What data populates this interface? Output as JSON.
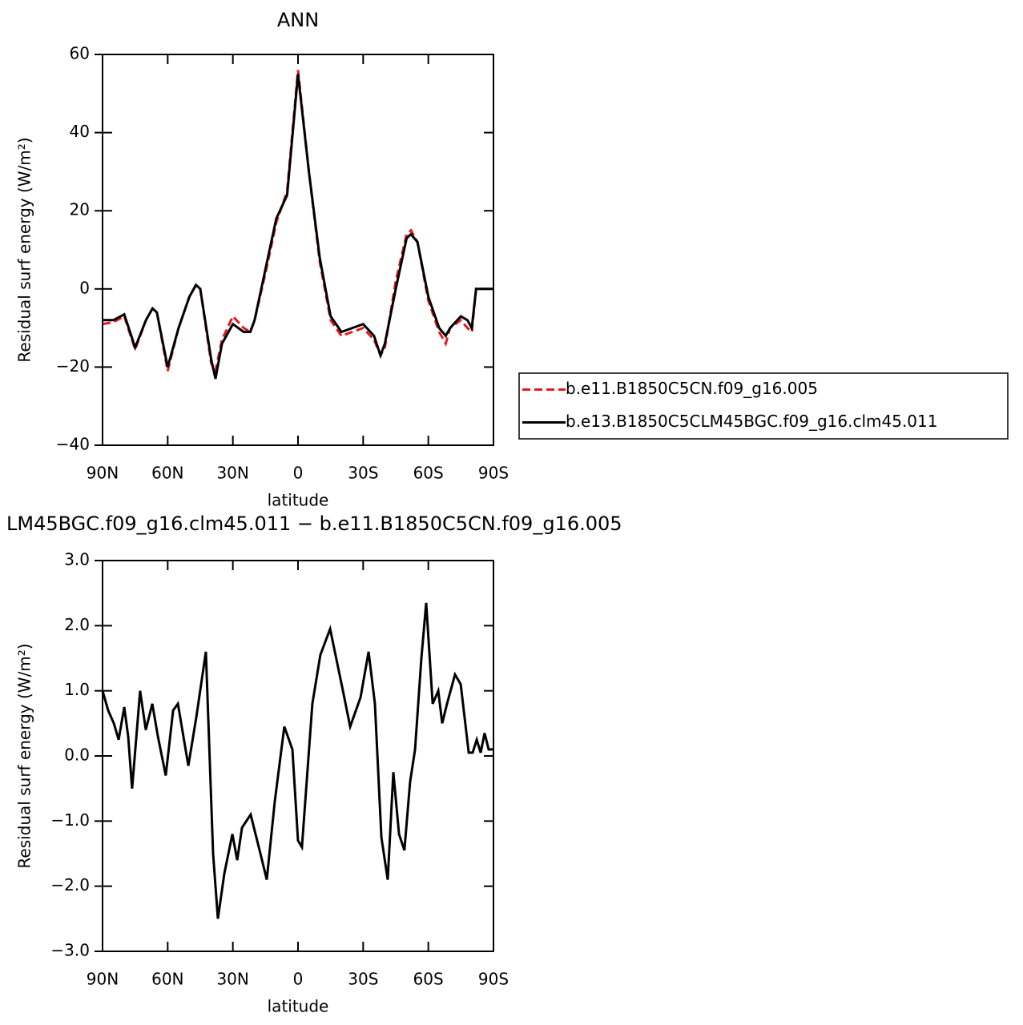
{
  "chart_data": [
    {
      "type": "line",
      "title": "ANN",
      "xlabel": "latitude",
      "ylabel": "Residual surf energy (W/m²)",
      "x": [
        90,
        85,
        80,
        75,
        70,
        67,
        65,
        60,
        55,
        50,
        47,
        45,
        40,
        38,
        35,
        30,
        25,
        22,
        20,
        15,
        10,
        5,
        0,
        -5,
        -10,
        -15,
        -20,
        -25,
        -30,
        -35,
        -38,
        -40,
        -45,
        -50,
        -52,
        -55,
        -60,
        -65,
        -68,
        -70,
        -75,
        -78,
        -80,
        -82,
        -90
      ],
      "series": [
        {
          "name": "b.e11.B1850C5CN.f09_g16.005",
          "color": "#e41a1c",
          "dash": true,
          "values": [
            -9,
            -8.5,
            -7,
            -15.5,
            -8,
            -5,
            -6,
            -21,
            -10,
            -2,
            1,
            0,
            -19,
            -21,
            -13,
            -7,
            -10,
            -11,
            -8,
            4,
            17,
            25,
            56,
            30,
            7,
            -8,
            -12,
            -11,
            -10,
            -13,
            -17,
            -15,
            2,
            14,
            15,
            12,
            -3,
            -11,
            -14,
            -10,
            -8,
            -10,
            -11,
            0,
            0
          ]
        },
        {
          "name": "b.e13.B1850C5CLM45BGC.f09_g16.clm45.011",
          "color": "#000000",
          "dash": false,
          "values": [
            -8,
            -8,
            -6.5,
            -15,
            -8,
            -5,
            -6,
            -20,
            -10,
            -2,
            1,
            0,
            -18,
            -23,
            -14,
            -9,
            -11,
            -11,
            -8,
            5,
            18,
            24,
            55,
            30,
            8,
            -7,
            -11,
            -10,
            -9,
            -12,
            -17,
            -14,
            0,
            13,
            14,
            12,
            -2,
            -10,
            -12,
            -10,
            -7,
            -8,
            -10,
            0,
            0
          ]
        }
      ],
      "xlim": [
        90,
        -90
      ],
      "xticks": [
        {
          "value": 90,
          "label": "90N"
        },
        {
          "value": 60,
          "label": "60N"
        },
        {
          "value": 30,
          "label": "30N"
        },
        0,
        {
          "value": -30,
          "label": "30S"
        },
        {
          "value": -60,
          "label": "60S"
        },
        {
          "value": -90,
          "label": "90S"
        }
      ],
      "ylim": [
        -40,
        60
      ],
      "yticks": [
        {
          "value": -40,
          "label": "−40"
        },
        {
          "value": -20,
          "label": "−20"
        },
        0,
        20,
        40,
        60
      ],
      "legend": "right"
    },
    {
      "type": "line",
      "title": "LM45BGC.f09_g16.clm45.011 − b.e11.B1850C5CN.f09_g16.005",
      "xlabel": "latitude",
      "ylabel": "Residual surf energy (W/m²)",
      "x": [
        90,
        87.4,
        84.8,
        82.6,
        80,
        78.2,
        76.4,
        72.7,
        70.1,
        67.1,
        64.5,
        60.9,
        57.5,
        55.3,
        50.5,
        46.8,
        42.4,
        39.1,
        36.9,
        33.9,
        30.2,
        28,
        25.8,
        21.8,
        17.3,
        14.4,
        10.7,
        6.3,
        2.6,
        0,
        -1.8,
        -6.6,
        -10.3,
        -14.8,
        -20.7,
        -24,
        -28.8,
        -32.5,
        -35.4,
        -38.4,
        -41.3,
        -43.9,
        -46.5,
        -49,
        -51.6,
        -53.9,
        -56.8,
        -59,
        -62,
        -64.6,
        -66.4,
        -68.6,
        -72.3,
        -74.9,
        -78.6,
        -80.4,
        -82.3,
        -84.1,
        -85.9,
        -87.8,
        -90
      ],
      "color": "#000000",
      "values": [
        1.0,
        0.7,
        0.5,
        0.25,
        0.75,
        0.3,
        -0.5,
        1.0,
        0.4,
        0.8,
        0.3,
        -0.3,
        0.7,
        0.8,
        -0.15,
        0.6,
        1.6,
        -1.5,
        -2.5,
        -1.8,
        -1.2,
        -1.6,
        -1.1,
        -0.9,
        -1.5,
        -1.9,
        -0.7,
        0.45,
        0.1,
        -1.3,
        -1.4,
        0.8,
        1.55,
        1.95,
        1.0,
        0.45,
        0.9,
        1.6,
        0.8,
        -1.25,
        -1.9,
        -0.25,
        -1.2,
        -1.45,
        -0.4,
        0.1,
        1.5,
        2.35,
        0.8,
        1.0,
        0.5,
        0.8,
        1.25,
        1.1,
        0.05,
        0.05,
        0.25,
        0.05,
        0.35,
        0.1,
        0.1
      ],
      "xlim": [
        90,
        -90
      ],
      "xticks": [
        {
          "value": 90,
          "label": "90N"
        },
        {
          "value": 60,
          "label": "60N"
        },
        {
          "value": 30,
          "label": "30N"
        },
        0,
        {
          "value": -30,
          "label": "30S"
        },
        {
          "value": -60,
          "label": "60S"
        },
        {
          "value": -90,
          "label": "90S"
        }
      ],
      "ylim": [
        -3,
        3
      ],
      "yticks": [
        {
          "value": -3,
          "label": "−3.0"
        },
        {
          "value": -2,
          "label": "−2.0"
        },
        {
          "value": -1,
          "label": "−1.0"
        },
        {
          "value": 0,
          "label": "0.0"
        },
        {
          "value": 1,
          "label": "1.0"
        },
        {
          "value": 2,
          "label": "2.0"
        },
        {
          "value": 3,
          "label": "3.0"
        }
      ]
    }
  ]
}
